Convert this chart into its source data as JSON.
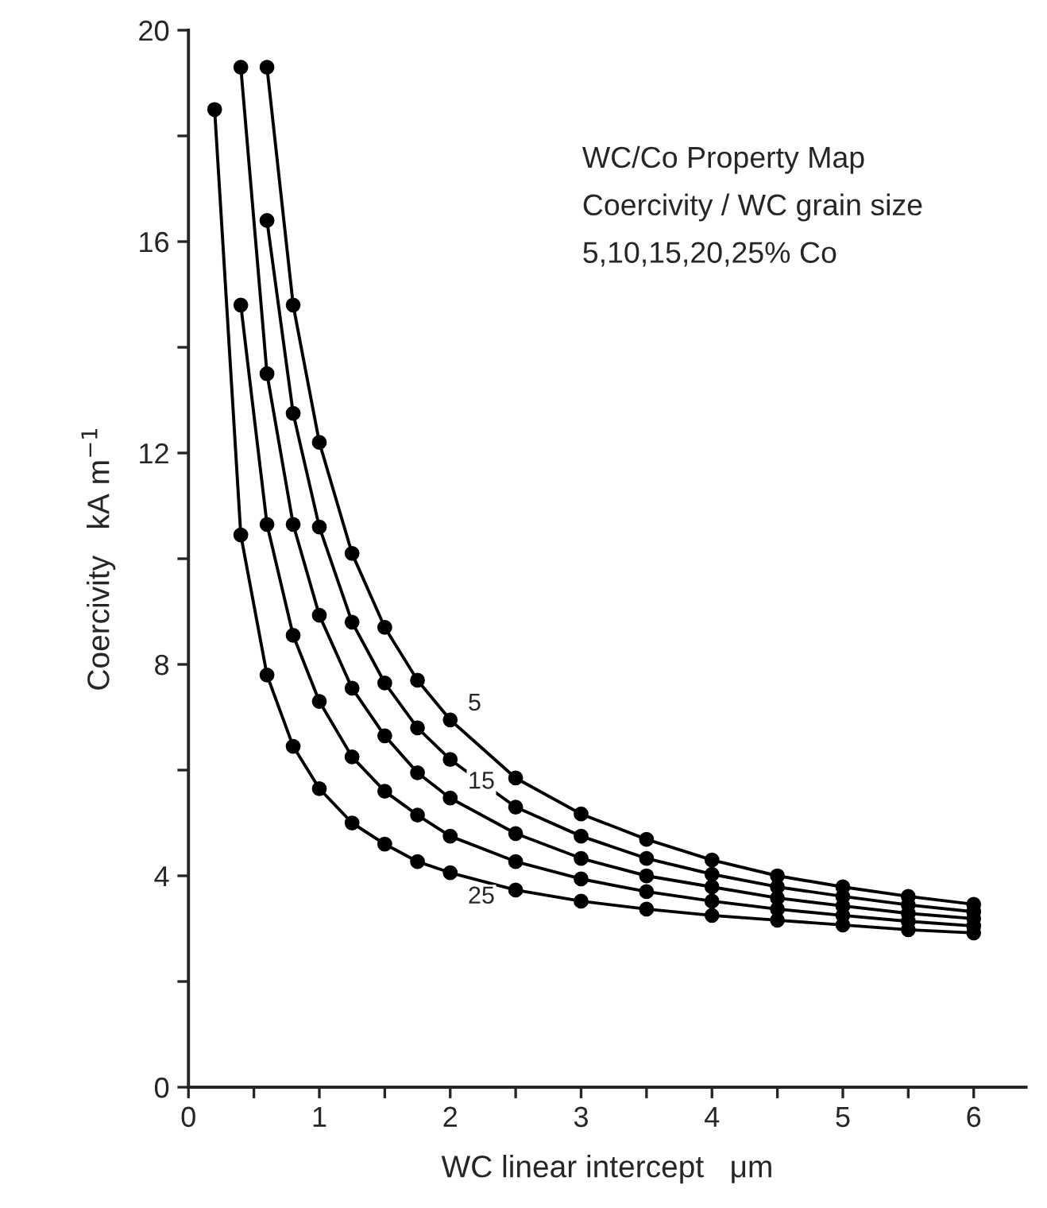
{
  "chart_data": {
    "type": "line",
    "xlabel": "WC linear intercept   μm",
    "ylabel": "Coercivity   kA m$^{−1}$",
    "annotations": [
      "WC/Co Property Map",
      "Coercivity / WC grain size",
      "5,10,15,20,25% Co"
    ],
    "xlim": [
      0,
      6.4
    ],
    "ylim": [
      0,
      20
    ],
    "xticks": [
      0,
      {
        "value": 0.5,
        "label": null
      },
      1,
      {
        "value": 1.5,
        "label": null
      },
      2,
      {
        "value": 2.5,
        "label": null
      },
      3,
      {
        "value": 3.5,
        "label": null
      },
      4,
      {
        "value": 4.5,
        "label": null
      },
      5,
      {
        "value": 5.5,
        "label": null
      },
      6
    ],
    "yticks": [
      0,
      {
        "value": 2,
        "label": null
      },
      4,
      {
        "value": 6,
        "label": null
      },
      8,
      {
        "value": 10,
        "label": null
      },
      12,
      {
        "value": 14,
        "label": null
      },
      16,
      {
        "value": 18,
        "label": null
      },
      20
    ],
    "marker": "circle",
    "line_style": "solid",
    "grid": false,
    "legend": false,
    "series": [
      {
        "name": "5",
        "color": "#000000",
        "x": [
          0.6,
          0.8,
          1.0,
          1.25,
          1.5,
          1.75,
          2.0,
          2.5,
          3.0,
          3.5,
          4.0,
          4.5,
          5.0,
          5.5,
          6.0
        ],
        "values": [
          19.3,
          14.8,
          12.2,
          10.1,
          8.7,
          7.7,
          6.95,
          5.85,
          5.17,
          4.69,
          4.3,
          4.0,
          3.79,
          3.61,
          3.46
        ]
      },
      {
        "color": "#000000",
        "x": [
          0.6,
          0.8,
          1.0,
          1.25,
          1.5,
          1.75,
          2.0,
          2.5,
          3.0,
          3.5,
          4.0,
          4.5,
          5.0,
          5.5,
          6.0
        ],
        "values": [
          16.4,
          12.75,
          10.6,
          8.8,
          7.65,
          6.8,
          6.2,
          5.3,
          4.75,
          4.33,
          4.03,
          3.79,
          3.61,
          3.45,
          3.32
        ]
      },
      {
        "name": "15",
        "color": "#000000",
        "x": [
          0.4,
          0.6,
          0.8,
          1.0,
          1.25,
          1.5,
          1.75,
          2.0,
          2.5,
          3.0,
          3.5,
          4.0,
          4.5,
          5.0,
          5.5,
          6.0
        ],
        "values": [
          19.3,
          13.5,
          10.65,
          8.93,
          7.55,
          6.65,
          5.95,
          5.47,
          4.8,
          4.33,
          4.0,
          3.79,
          3.58,
          3.43,
          3.29,
          3.19
        ]
      },
      {
        "color": "#000000",
        "x": [
          0.4,
          0.6,
          0.8,
          1.0,
          1.25,
          1.5,
          1.75,
          2.0,
          2.5,
          3.0,
          3.5,
          4.0,
          4.5,
          5.0,
          5.5,
          6.0
        ],
        "values": [
          14.8,
          10.65,
          8.55,
          7.3,
          6.25,
          5.6,
          5.15,
          4.75,
          4.27,
          3.94,
          3.7,
          3.52,
          3.37,
          3.25,
          3.14,
          3.05
        ]
      },
      {
        "name": "25",
        "color": "#000000",
        "x": [
          0.2,
          0.4,
          0.6,
          0.8,
          1.0,
          1.25,
          1.5,
          1.75,
          2.0,
          2.5,
          3.0,
          3.5,
          4.0,
          4.5,
          5.0,
          5.5,
          6.0
        ],
        "values": [
          18.5,
          10.45,
          7.8,
          6.45,
          5.65,
          5.0,
          4.6,
          4.27,
          4.06,
          3.73,
          3.52,
          3.37,
          3.25,
          3.16,
          3.07,
          2.98,
          2.92
        ]
      }
    ]
  }
}
